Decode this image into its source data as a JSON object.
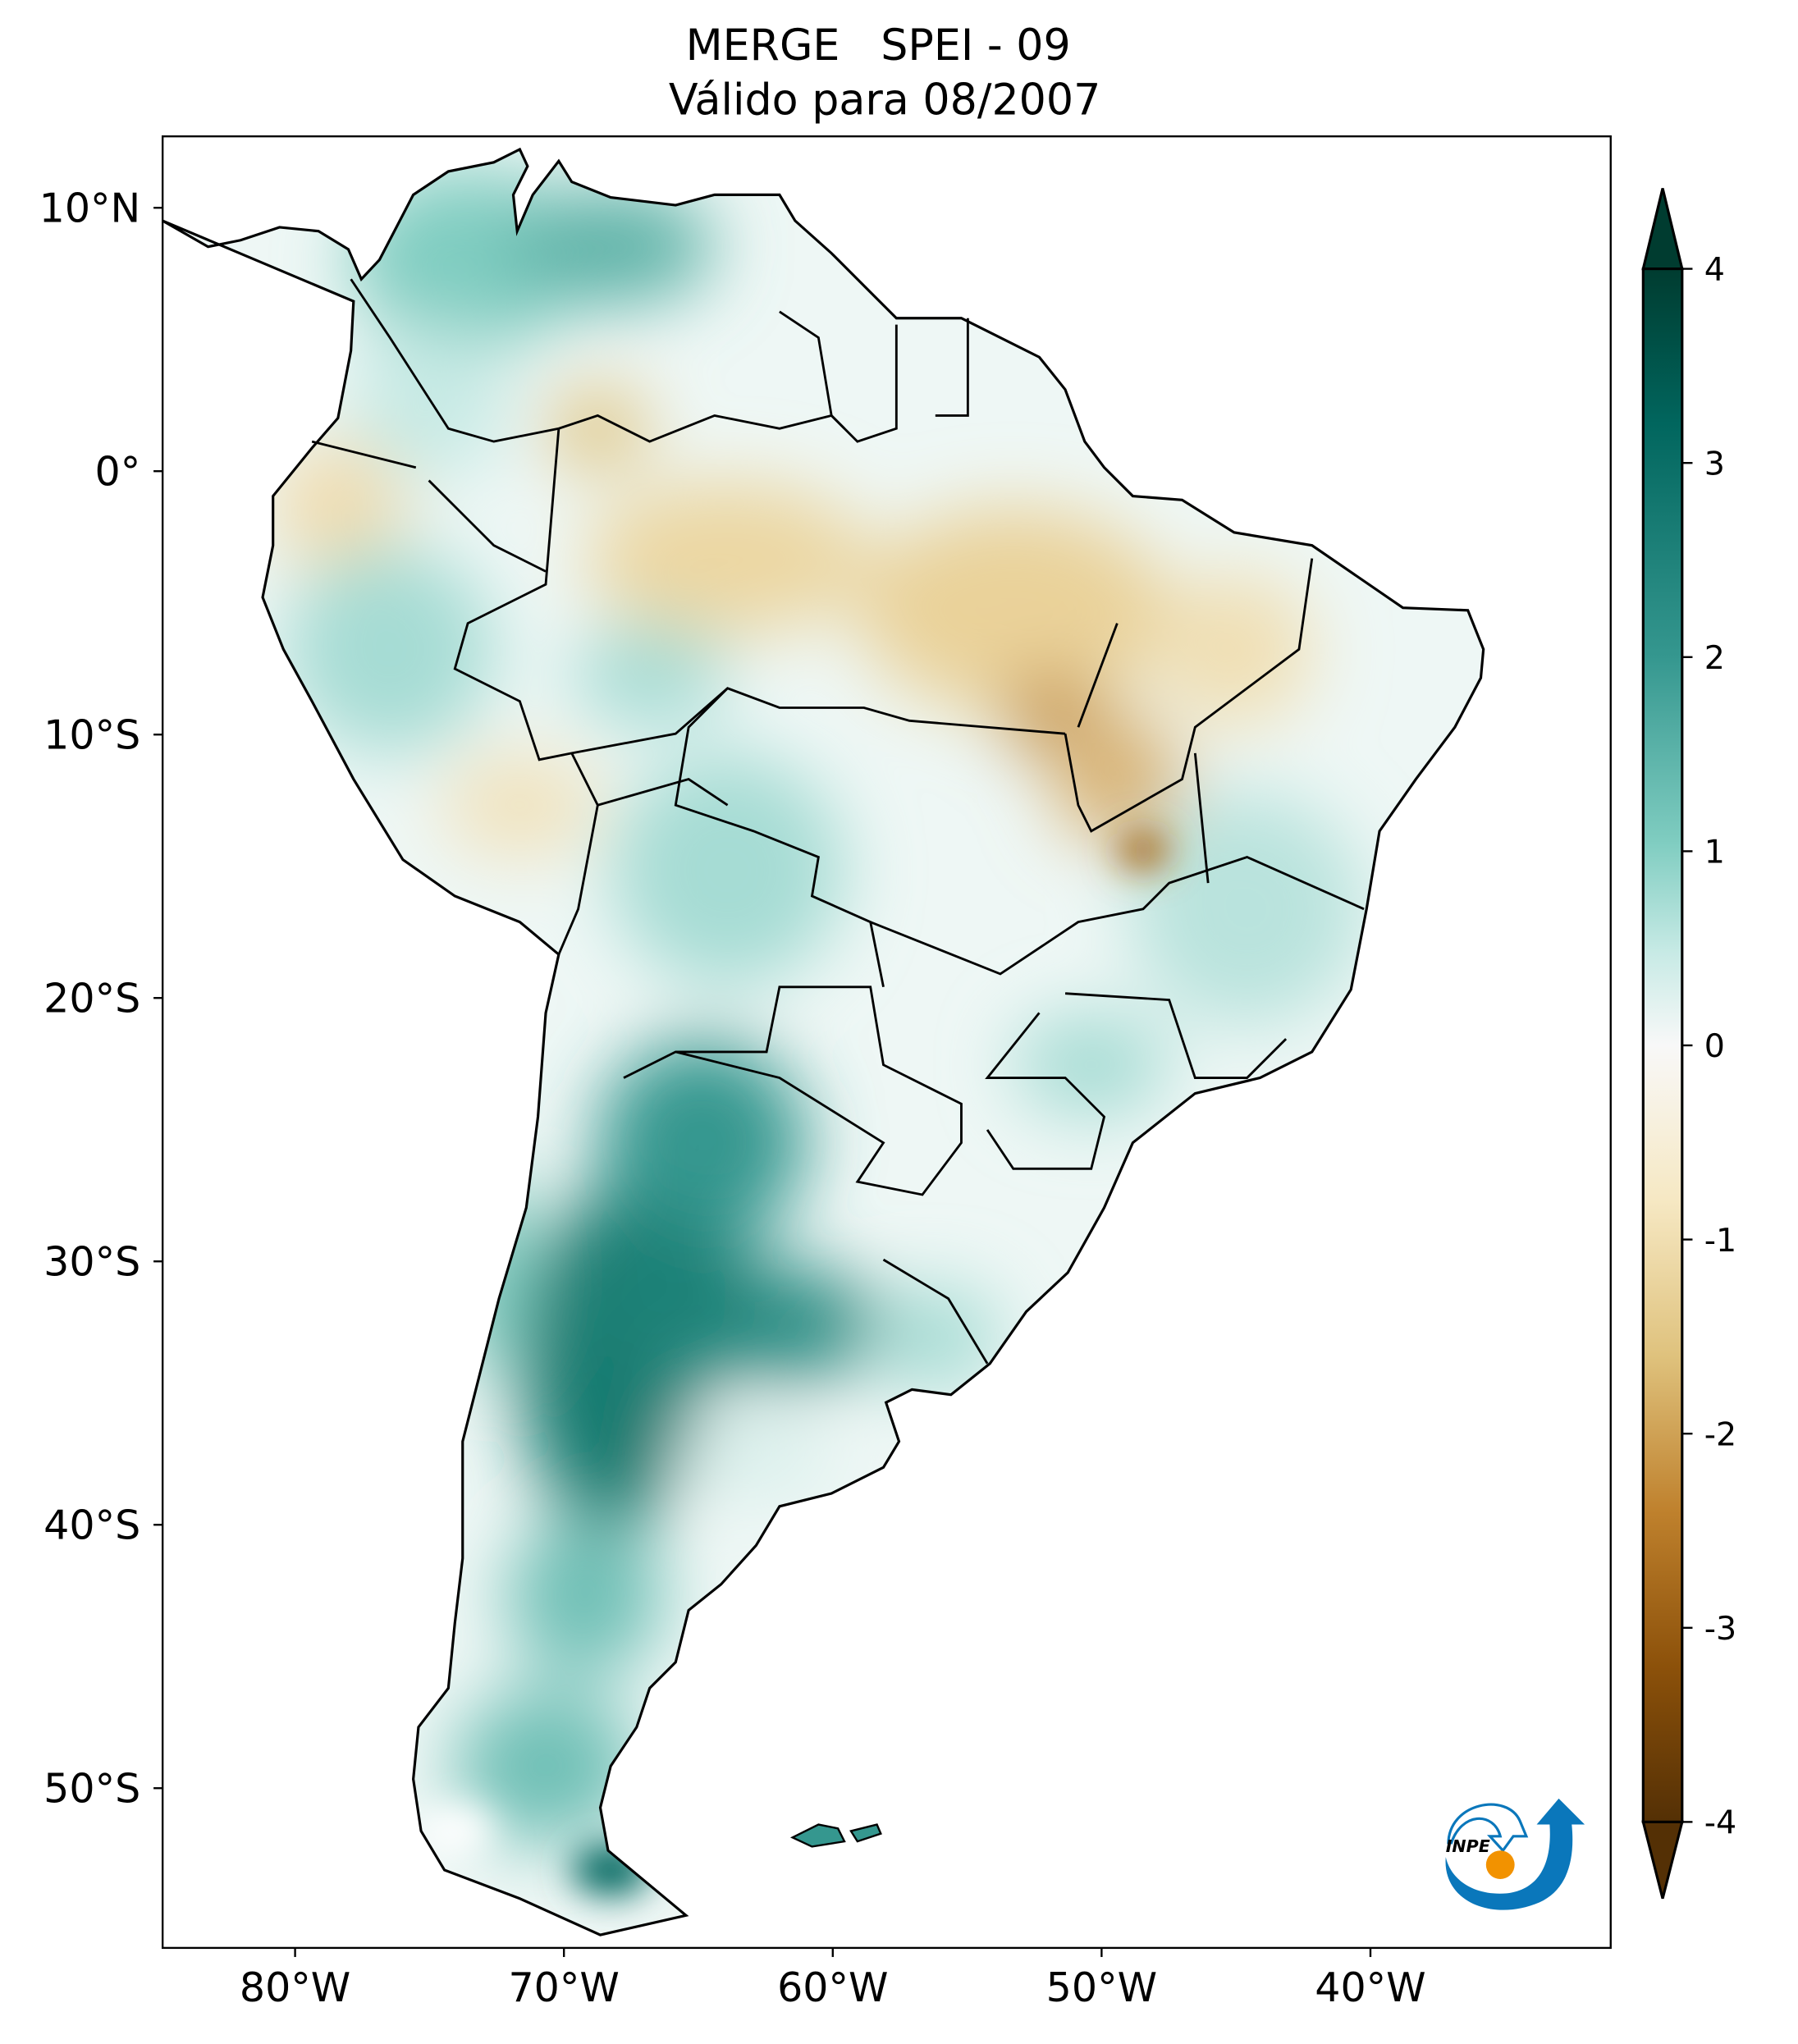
{
  "title": {
    "line1": "MERGE   SPEI - 09",
    "line2": "Válido para 08/2007"
  },
  "axes": {
    "lat_ticks": [
      {
        "value": 10,
        "label": "10°N"
      },
      {
        "value": 0,
        "label": "0°"
      },
      {
        "value": -10,
        "label": "10°S"
      },
      {
        "value": -20,
        "label": "20°S"
      },
      {
        "value": -30,
        "label": "30°S"
      },
      {
        "value": -40,
        "label": "40°S"
      },
      {
        "value": -50,
        "label": "50°S"
      }
    ],
    "lon_ticks": [
      {
        "value": -80,
        "label": "80°W"
      },
      {
        "value": -70,
        "label": "70°W"
      },
      {
        "value": -60,
        "label": "60°W"
      },
      {
        "value": -50,
        "label": "50°W"
      },
      {
        "value": -40,
        "label": "40°W"
      }
    ],
    "lon_range": [
      -85,
      -31
    ],
    "lat_range": [
      -56.1,
      12.7
    ]
  },
  "colorbar": {
    "range": [
      -4,
      4
    ],
    "extend": "both",
    "ticks": [
      {
        "value": 4,
        "label": "4"
      },
      {
        "value": 3,
        "label": "3"
      },
      {
        "value": 2,
        "label": "2"
      },
      {
        "value": 1,
        "label": "1"
      },
      {
        "value": 0,
        "label": "0"
      },
      {
        "value": -1,
        "label": "-1"
      },
      {
        "value": -2,
        "label": "-2"
      },
      {
        "value": -3,
        "label": "-3"
      },
      {
        "value": -4,
        "label": "-4"
      }
    ],
    "colors": [
      "#543005",
      "#8c510a",
      "#bf812d",
      "#dfc27d",
      "#f6e8c3",
      "#f5f5f5",
      "#c7eae5",
      "#80cdc1",
      "#35978f",
      "#01665e",
      "#003c30"
    ]
  },
  "logo": {
    "text": "INPE",
    "blue": "#0a77bb",
    "orange": "#f29200"
  }
}
